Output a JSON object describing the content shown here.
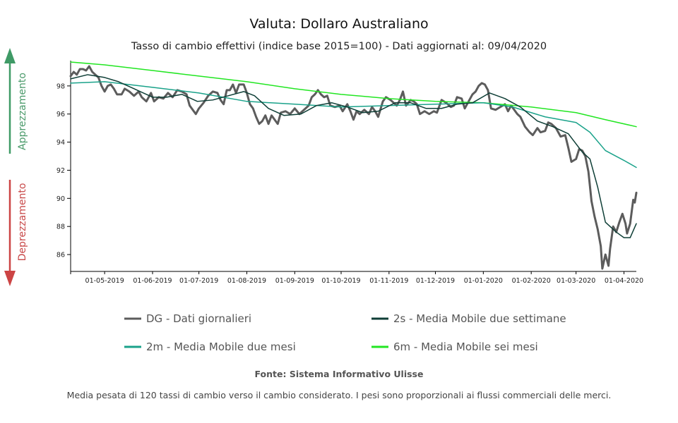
{
  "header": {
    "title": "Valuta: Dollaro Australiano",
    "subtitle": "Tasso di cambio effettivi (indice base 2015=100) - Dati aggiornati al: 09/04/2020"
  },
  "side_labels": {
    "up": "Apprezzamento",
    "down": "Deprezzamento",
    "up_color": "#3f9a66",
    "down_color": "#cc4444"
  },
  "footer": {
    "source": "Fonte: Sistema Informativo Ulisse",
    "note": "Media pesata di 120 tassi di cambio verso il cambio considerato. I pesi sono proporzionali ai flussi commerciali delle merci."
  },
  "chart_data": {
    "type": "line",
    "title": "Valuta: Dollaro Australiano",
    "subtitle": "Tasso di cambio effettivi (indice base 2015=100) - Dati aggiornati al: 09/04/2020",
    "xlabel": "",
    "ylabel": "",
    "x_range": [
      "2019-04-09",
      "2020-04-09"
    ],
    "ylim": [
      84.8,
      99.8
    ],
    "y_ticks": [
      86,
      88,
      90,
      92,
      94,
      96,
      98
    ],
    "x_ticks": [
      {
        "date": "2019-05-01",
        "label": "01-05-2019"
      },
      {
        "date": "2019-06-01",
        "label": "01-06-2019"
      },
      {
        "date": "2019-07-01",
        "label": "01-07-2019"
      },
      {
        "date": "2019-08-01",
        "label": "01-08-2019"
      },
      {
        "date": "2019-09-01",
        "label": "01-09-2019"
      },
      {
        "date": "2019-10-01",
        "label": "01-10-2019"
      },
      {
        "date": "2019-11-01",
        "label": "01-11-2019"
      },
      {
        "date": "2019-12-01",
        "label": "01-12-2019"
      },
      {
        "date": "2020-01-01",
        "label": "01-01-2020"
      },
      {
        "date": "2020-02-01",
        "label": "01-02-2020"
      },
      {
        "date": "2020-03-01",
        "label": "01-03-2020"
      },
      {
        "date": "2020-04-01",
        "label": "01-04-2020"
      }
    ],
    "grid": false,
    "legend": "bottom",
    "series": [
      {
        "name": "DG - Dati giornalieri",
        "color": "#5c5c5c",
        "width": 3,
        "points": [
          [
            "2019-04-09",
            98.7
          ],
          [
            "2019-04-11",
            99.0
          ],
          [
            "2019-04-13",
            98.8
          ],
          [
            "2019-04-15",
            99.2
          ],
          [
            "2019-04-17",
            99.2
          ],
          [
            "2019-04-19",
            99.1
          ],
          [
            "2019-04-21",
            99.4
          ],
          [
            "2019-04-23",
            99.0
          ],
          [
            "2019-04-25",
            98.8
          ],
          [
            "2019-04-27",
            98.6
          ],
          [
            "2019-04-29",
            98.0
          ],
          [
            "2019-05-01",
            97.6
          ],
          [
            "2019-05-03",
            98.0
          ],
          [
            "2019-05-05",
            98.1
          ],
          [
            "2019-05-07",
            97.8
          ],
          [
            "2019-05-09",
            97.4
          ],
          [
            "2019-05-12",
            97.4
          ],
          [
            "2019-05-14",
            97.8
          ],
          [
            "2019-05-17",
            97.6
          ],
          [
            "2019-05-20",
            97.3
          ],
          [
            "2019-05-23",
            97.6
          ],
          [
            "2019-05-25",
            97.2
          ],
          [
            "2019-05-28",
            96.9
          ],
          [
            "2019-05-31",
            97.5
          ],
          [
            "2019-06-02",
            96.9
          ],
          [
            "2019-06-05",
            97.2
          ],
          [
            "2019-06-08",
            97.1
          ],
          [
            "2019-06-11",
            97.5
          ],
          [
            "2019-06-14",
            97.2
          ],
          [
            "2019-06-17",
            97.7
          ],
          [
            "2019-06-20",
            97.6
          ],
          [
            "2019-06-23",
            97.4
          ],
          [
            "2019-06-25",
            96.6
          ],
          [
            "2019-06-27",
            96.3
          ],
          [
            "2019-06-29",
            96.0
          ],
          [
            "2019-07-01",
            96.4
          ],
          [
            "2019-07-04",
            96.8
          ],
          [
            "2019-07-07",
            97.3
          ],
          [
            "2019-07-10",
            97.6
          ],
          [
            "2019-07-13",
            97.5
          ],
          [
            "2019-07-15",
            97.0
          ],
          [
            "2019-07-17",
            96.7
          ],
          [
            "2019-07-19",
            97.7
          ],
          [
            "2019-07-21",
            97.7
          ],
          [
            "2019-07-23",
            98.1
          ],
          [
            "2019-07-25",
            97.5
          ],
          [
            "2019-07-27",
            98.1
          ],
          [
            "2019-07-30",
            98.1
          ],
          [
            "2019-08-01",
            97.5
          ],
          [
            "2019-08-03",
            96.7
          ],
          [
            "2019-08-05",
            96.4
          ],
          [
            "2019-08-07",
            95.8
          ],
          [
            "2019-08-09",
            95.3
          ],
          [
            "2019-08-11",
            95.5
          ],
          [
            "2019-08-13",
            95.9
          ],
          [
            "2019-08-15",
            95.3
          ],
          [
            "2019-08-17",
            95.9
          ],
          [
            "2019-08-19",
            95.6
          ],
          [
            "2019-08-21",
            95.3
          ],
          [
            "2019-08-23",
            96.1
          ],
          [
            "2019-08-26",
            96.2
          ],
          [
            "2019-08-29",
            96.0
          ],
          [
            "2019-09-01",
            96.4
          ],
          [
            "2019-09-04",
            96.0
          ],
          [
            "2019-09-07",
            96.3
          ],
          [
            "2019-09-10",
            96.6
          ],
          [
            "2019-09-12",
            97.2
          ],
          [
            "2019-09-14",
            97.4
          ],
          [
            "2019-09-16",
            97.7
          ],
          [
            "2019-09-18",
            97.4
          ],
          [
            "2019-09-20",
            97.2
          ],
          [
            "2019-09-22",
            97.3
          ],
          [
            "2019-09-24",
            96.6
          ],
          [
            "2019-09-27",
            96.5
          ],
          [
            "2019-09-30",
            96.6
          ],
          [
            "2019-10-02",
            96.2
          ],
          [
            "2019-10-05",
            96.7
          ],
          [
            "2019-10-07",
            96.2
          ],
          [
            "2019-10-09",
            95.6
          ],
          [
            "2019-10-11",
            96.2
          ],
          [
            "2019-10-13",
            96.0
          ],
          [
            "2019-10-16",
            96.3
          ],
          [
            "2019-10-19",
            96.0
          ],
          [
            "2019-10-21",
            96.5
          ],
          [
            "2019-10-23",
            96.2
          ],
          [
            "2019-10-25",
            95.8
          ],
          [
            "2019-10-28",
            96.9
          ],
          [
            "2019-10-30",
            97.2
          ],
          [
            "2019-11-02",
            97.0
          ],
          [
            "2019-11-04",
            96.8
          ],
          [
            "2019-11-06",
            96.6
          ],
          [
            "2019-11-08",
            97.0
          ],
          [
            "2019-11-10",
            97.6
          ],
          [
            "2019-11-12",
            96.6
          ],
          [
            "2019-11-15",
            97.0
          ],
          [
            "2019-11-17",
            96.9
          ],
          [
            "2019-11-19",
            96.7
          ],
          [
            "2019-11-21",
            96.0
          ],
          [
            "2019-11-24",
            96.2
          ],
          [
            "2019-11-27",
            96.0
          ],
          [
            "2019-11-30",
            96.2
          ],
          [
            "2019-12-02",
            96.1
          ],
          [
            "2019-12-05",
            97.0
          ],
          [
            "2019-12-08",
            96.8
          ],
          [
            "2019-12-11",
            96.5
          ],
          [
            "2019-12-13",
            96.6
          ],
          [
            "2019-12-15",
            97.2
          ],
          [
            "2019-12-18",
            97.1
          ],
          [
            "2019-12-20",
            96.4
          ],
          [
            "2019-12-22",
            96.8
          ],
          [
            "2019-12-25",
            97.4
          ],
          [
            "2019-12-27",
            97.6
          ],
          [
            "2019-12-29",
            98.0
          ],
          [
            "2019-12-31",
            98.2
          ],
          [
            "2020-01-02",
            98.1
          ],
          [
            "2020-01-04",
            97.7
          ],
          [
            "2020-01-06",
            96.4
          ],
          [
            "2020-01-09",
            96.3
          ],
          [
            "2020-01-12",
            96.5
          ],
          [
            "2020-01-15",
            96.7
          ],
          [
            "2020-01-17",
            96.2
          ],
          [
            "2020-01-19",
            96.6
          ],
          [
            "2020-01-21",
            96.3
          ],
          [
            "2020-01-23",
            96.0
          ],
          [
            "2020-01-25",
            95.8
          ],
          [
            "2020-01-28",
            95.1
          ],
          [
            "2020-01-31",
            94.7
          ],
          [
            "2020-02-02",
            94.5
          ],
          [
            "2020-02-05",
            95.0
          ],
          [
            "2020-02-07",
            94.7
          ],
          [
            "2020-02-10",
            94.8
          ],
          [
            "2020-02-12",
            95.4
          ],
          [
            "2020-02-14",
            95.3
          ],
          [
            "2020-02-17",
            95.0
          ],
          [
            "2020-02-20",
            94.4
          ],
          [
            "2020-02-23",
            94.5
          ],
          [
            "2020-02-25",
            93.6
          ],
          [
            "2020-02-27",
            92.6
          ],
          [
            "2020-03-01",
            92.8
          ],
          [
            "2020-03-03",
            93.5
          ],
          [
            "2020-03-05",
            93.4
          ],
          [
            "2020-03-07",
            93.0
          ],
          [
            "2020-03-09",
            91.9
          ],
          [
            "2020-03-11",
            89.8
          ],
          [
            "2020-03-13",
            88.7
          ],
          [
            "2020-03-15",
            87.8
          ],
          [
            "2020-03-17",
            86.6
          ],
          [
            "2020-03-18",
            85.0
          ],
          [
            "2020-03-20",
            86.0
          ],
          [
            "2020-03-22",
            85.2
          ],
          [
            "2020-03-23",
            86.4
          ],
          [
            "2020-03-25",
            88.0
          ],
          [
            "2020-03-27",
            87.6
          ],
          [
            "2020-03-29",
            88.3
          ],
          [
            "2020-03-31",
            88.9
          ],
          [
            "2020-04-02",
            88.2
          ],
          [
            "2020-04-03",
            87.5
          ],
          [
            "2020-04-05",
            88.2
          ],
          [
            "2020-04-07",
            89.9
          ],
          [
            "2020-04-08",
            89.7
          ],
          [
            "2020-04-09",
            90.4
          ]
        ]
      },
      {
        "name": "2s - Media Mobile due settimane",
        "color": "#0e3e36",
        "width": 1.5,
        "points": [
          [
            "2019-04-09",
            98.5
          ],
          [
            "2019-04-20",
            98.8
          ],
          [
            "2019-05-01",
            98.6
          ],
          [
            "2019-05-10",
            98.3
          ],
          [
            "2019-05-20",
            97.8
          ],
          [
            "2019-06-01",
            97.2
          ],
          [
            "2019-06-10",
            97.2
          ],
          [
            "2019-06-20",
            97.4
          ],
          [
            "2019-06-30",
            96.9
          ],
          [
            "2019-07-10",
            97.0
          ],
          [
            "2019-07-20",
            97.3
          ],
          [
            "2019-07-30",
            97.6
          ],
          [
            "2019-08-06",
            97.3
          ],
          [
            "2019-08-15",
            96.4
          ],
          [
            "2019-08-25",
            95.9
          ],
          [
            "2019-09-05",
            96.0
          ],
          [
            "2019-09-15",
            96.6
          ],
          [
            "2019-09-25",
            96.8
          ],
          [
            "2019-10-05",
            96.5
          ],
          [
            "2019-10-15",
            96.1
          ],
          [
            "2019-10-25",
            96.2
          ],
          [
            "2019-11-05",
            96.8
          ],
          [
            "2019-11-15",
            96.8
          ],
          [
            "2019-11-25",
            96.4
          ],
          [
            "2019-12-05",
            96.4
          ],
          [
            "2019-12-15",
            96.7
          ],
          [
            "2019-12-25",
            96.8
          ],
          [
            "2020-01-05",
            97.5
          ],
          [
            "2020-01-15",
            97.1
          ],
          [
            "2020-01-25",
            96.5
          ],
          [
            "2020-02-05",
            95.5
          ],
          [
            "2020-02-15",
            95.1
          ],
          [
            "2020-02-25",
            94.6
          ],
          [
            "2020-03-05",
            93.3
          ],
          [
            "2020-03-10",
            92.8
          ],
          [
            "2020-03-15",
            90.8
          ],
          [
            "2020-03-20",
            88.3
          ],
          [
            "2020-03-27",
            87.6
          ],
          [
            "2020-04-01",
            87.2
          ],
          [
            "2020-04-05",
            87.2
          ],
          [
            "2020-04-09",
            88.2
          ]
        ]
      },
      {
        "name": "2m - Media Mobile due mesi",
        "color": "#1aa28a",
        "width": 1.5,
        "points": [
          [
            "2019-04-09",
            98.2
          ],
          [
            "2019-05-01",
            98.3
          ],
          [
            "2019-06-01",
            97.9
          ],
          [
            "2019-07-01",
            97.5
          ],
          [
            "2019-08-01",
            96.9
          ],
          [
            "2019-09-01",
            96.7
          ],
          [
            "2019-10-01",
            96.5
          ],
          [
            "2019-11-01",
            96.6
          ],
          [
            "2019-12-01",
            96.7
          ],
          [
            "2020-01-01",
            96.8
          ],
          [
            "2020-01-20",
            96.5
          ],
          [
            "2020-02-10",
            95.8
          ],
          [
            "2020-03-01",
            95.4
          ],
          [
            "2020-03-10",
            94.7
          ],
          [
            "2020-03-20",
            93.4
          ],
          [
            "2020-04-01",
            92.7
          ],
          [
            "2020-04-09",
            92.2
          ]
        ]
      },
      {
        "name": "6m - Media Mobile sei mesi",
        "color": "#22e622",
        "width": 1.5,
        "points": [
          [
            "2019-04-09",
            99.7
          ],
          [
            "2019-05-01",
            99.5
          ],
          [
            "2019-06-01",
            99.1
          ],
          [
            "2019-07-01",
            98.7
          ],
          [
            "2019-08-01",
            98.3
          ],
          [
            "2019-09-01",
            97.8
          ],
          [
            "2019-10-01",
            97.4
          ],
          [
            "2019-11-01",
            97.1
          ],
          [
            "2019-12-01",
            96.9
          ],
          [
            "2020-01-01",
            96.8
          ],
          [
            "2020-02-01",
            96.5
          ],
          [
            "2020-03-01",
            96.1
          ],
          [
            "2020-03-20",
            95.6
          ],
          [
            "2020-04-09",
            95.1
          ]
        ]
      }
    ]
  }
}
